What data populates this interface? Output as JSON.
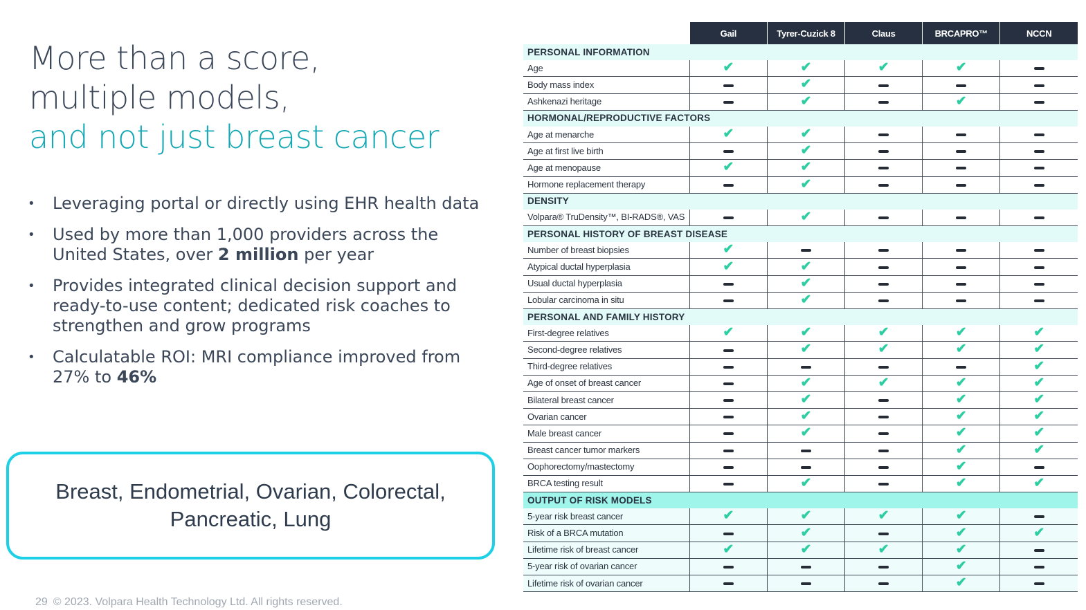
{
  "slide": {
    "title_line1": "More than a score,",
    "title_line2": "multiple models,",
    "title_line3": "and not just breast cancer",
    "bullets": {
      "b1": "Leveraging portal or directly using EHR health data",
      "b2_pre": "Used by more than 1,000 providers across the United States, over ",
      "b2_bold": "2 million",
      "b2_post": " per year",
      "b3": "Provides integrated clinical decision support and ready-to-use content; dedicated risk coaches to strengthen and grow programs",
      "b4_pre": "Calculatable ROI: MRI compliance improved from 27% to ",
      "b4_bold": "46%"
    },
    "cancer_box": "Breast, Endometrial, Ovarian, Colorectal, Pancreatic, Lung",
    "page_number": "29",
    "footer": "© 2023. Volpara Health Technology Ltd. All rights reserved.",
    "colors": {
      "accent": "#14a8b4",
      "header_bg": "#263040",
      "section_bg": "#e2fbf8",
      "output_bg": "#9ff5ea",
      "check": "#2dcda2",
      "box_border": "#1dd0e6"
    }
  },
  "table": {
    "columns": [
      "Gail",
      "Tyrer-Cuzick 8",
      "Claus",
      "BRCAPRO™",
      "NCCN"
    ],
    "legend": {
      "Y": "check-icon",
      "N": "dash-icon"
    },
    "sections": [
      {
        "title": "PERSONAL INFORMATION",
        "style": "light",
        "rows": [
          {
            "label": "Age",
            "v": [
              "Y",
              "Y",
              "Y",
              "Y",
              "N"
            ]
          },
          {
            "label": "Body mass index",
            "v": [
              "N",
              "Y",
              "N",
              "N",
              "N"
            ]
          },
          {
            "label": "Ashkenazi heritage",
            "v": [
              "N",
              "Y",
              "N",
              "Y",
              "N"
            ]
          }
        ]
      },
      {
        "title": "HORMONAL/REPRODUCTIVE FACTORS",
        "style": "light",
        "rows": [
          {
            "label": "Age at menarche",
            "v": [
              "Y",
              "Y",
              "N",
              "N",
              "N"
            ]
          },
          {
            "label": "Age at first live birth",
            "v": [
              "N",
              "Y",
              "N",
              "N",
              "N"
            ]
          },
          {
            "label": "Age at menopause",
            "v": [
              "Y",
              "Y",
              "N",
              "N",
              "N"
            ]
          },
          {
            "label": "Hormone replacement therapy",
            "v": [
              "N",
              "Y",
              "N",
              "N",
              "N"
            ]
          }
        ]
      },
      {
        "title": "DENSITY",
        "style": "light",
        "rows": [
          {
            "label": "Volpara® TruDensity™, BI-RADS®, VAS",
            "v": [
              "N",
              "Y",
              "N",
              "N",
              "N"
            ]
          }
        ]
      },
      {
        "title": "PERSONAL HISTORY OF BREAST DISEASE",
        "style": "light",
        "rows": [
          {
            "label": "Number of breast biopsies",
            "v": [
              "Y",
              "N",
              "N",
              "N",
              "N"
            ]
          },
          {
            "label": "Atypical ductal hyperplasia",
            "v": [
              "Y",
              "Y",
              "N",
              "N",
              "N"
            ]
          },
          {
            "label": "Usual ductal hyperplasia",
            "v": [
              "N",
              "Y",
              "N",
              "N",
              "N"
            ]
          },
          {
            "label": "Lobular carcinoma in situ",
            "v": [
              "N",
              "Y",
              "N",
              "N",
              "N"
            ]
          }
        ]
      },
      {
        "title": "PERSONAL AND FAMILY HISTORY",
        "style": "light",
        "rows": [
          {
            "label": "First-degree relatives",
            "v": [
              "Y",
              "Y",
              "Y",
              "Y",
              "Y"
            ]
          },
          {
            "label": "Second-degree relatives",
            "v": [
              "N",
              "Y",
              "Y",
              "Y",
              "Y"
            ]
          },
          {
            "label": "Third-degree relatives",
            "v": [
              "N",
              "N",
              "N",
              "N",
              "Y"
            ]
          },
          {
            "label": "Age of onset of breast cancer",
            "v": [
              "N",
              "Y",
              "Y",
              "Y",
              "Y"
            ]
          },
          {
            "label": "Bilateral breast cancer",
            "v": [
              "N",
              "Y",
              "N",
              "Y",
              "Y"
            ]
          },
          {
            "label": "Ovarian cancer",
            "v": [
              "N",
              "Y",
              "N",
              "Y",
              "Y"
            ]
          },
          {
            "label": "Male breast cancer",
            "v": [
              "N",
              "Y",
              "N",
              "Y",
              "Y"
            ]
          },
          {
            "label": "Breast cancer tumor markers",
            "v": [
              "N",
              "N",
              "N",
              "Y",
              "Y"
            ]
          },
          {
            "label": "Oophorectomy/mastectomy",
            "v": [
              "N",
              "N",
              "N",
              "Y",
              "N"
            ]
          },
          {
            "label": "BRCA testing result",
            "v": [
              "N",
              "Y",
              "N",
              "Y",
              "Y"
            ]
          }
        ]
      },
      {
        "title": "OUTPUT OF RISK MODELS",
        "style": "strong",
        "rows": [
          {
            "label": "5-year risk breast cancer",
            "v": [
              "Y",
              "Y",
              "Y",
              "Y",
              "N"
            ]
          },
          {
            "label": "Risk of a BRCA mutation",
            "v": [
              "N",
              "Y",
              "N",
              "Y",
              "Y"
            ]
          },
          {
            "label": "Lifetime risk of breast cancer",
            "v": [
              "Y",
              "Y",
              "Y",
              "Y",
              "N"
            ]
          },
          {
            "label": "5-year risk of ovarian cancer",
            "v": [
              "N",
              "N",
              "N",
              "Y",
              "N"
            ]
          },
          {
            "label": "Lifetime risk of ovarian cancer",
            "v": [
              "N",
              "N",
              "N",
              "Y",
              "N"
            ]
          }
        ]
      }
    ]
  }
}
